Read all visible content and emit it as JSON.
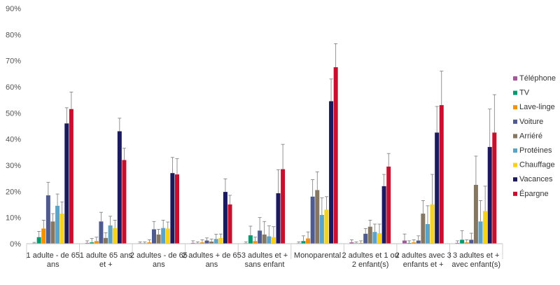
{
  "chart_data": {
    "type": "bar",
    "ylim": [
      0,
      90
    ],
    "y_tick_values": [
      0,
      10,
      20,
      30,
      40,
      50,
      60,
      70,
      80,
      90
    ],
    "y_tick_suffix": "%",
    "grid": false,
    "legend_position": "right",
    "error_bars": true,
    "categories": [
      [
        "1 adulte - de 65",
        "ans"
      ],
      [
        "1 adulte 65 ans",
        "et +"
      ],
      [
        "2 adultes - de 65",
        "ans"
      ],
      [
        "2 adultes + de 65",
        "ans"
      ],
      [
        "3 adultes et +",
        "sans enfant"
      ],
      [
        "Monoparental"
      ],
      [
        "2 adultes et 1 ou",
        "2 enfant(s)"
      ],
      [
        "2 adultes avec 3",
        "enfants et +"
      ],
      [
        "3 adultes et +",
        "avec enfant(s)"
      ]
    ],
    "series": [
      {
        "name": "Téléphone",
        "color": "#a5579a",
        "values": [
          0.2,
          0.3,
          0.2,
          0.3,
          0.2,
          0.2,
          0.5,
          1.2,
          0.3
        ],
        "err": [
          0.3,
          0.8,
          0.5,
          0.8,
          0.5,
          0.5,
          1.0,
          2.5,
          0.8
        ]
      },
      {
        "name": "TV",
        "color": "#009a6e",
        "values": [
          2.5,
          0.5,
          0.2,
          0.2,
          3.2,
          1.0,
          0.2,
          0.3,
          1.5
        ],
        "err": [
          2.2,
          1.5,
          0.5,
          0.5,
          3.5,
          2.0,
          0.5,
          0.8,
          3.5
        ]
      },
      {
        "name": "Lave-linge",
        "color": "#f39200",
        "values": [
          5.8,
          1.0,
          0.5,
          0.5,
          1.0,
          2.0,
          0.3,
          0.5,
          0.5
        ],
        "err": [
          3.2,
          1.5,
          1.0,
          1.0,
          1.5,
          2.5,
          0.8,
          1.0,
          1.0
        ]
      },
      {
        "name": "Voiture",
        "color": "#4f5b8f",
        "values": [
          18.5,
          8.5,
          5.5,
          1.2,
          5.0,
          18.0,
          3.8,
          1.2,
          1.5
        ],
        "err": [
          5.0,
          3.5,
          3.0,
          1.0,
          5.0,
          6.5,
          2.0,
          1.8,
          2.5
        ]
      },
      {
        "name": "Arriéré",
        "color": "#857762",
        "values": [
          8.5,
          2.2,
          3.5,
          0.8,
          3.5,
          20.5,
          6.5,
          11.5,
          22.5
        ],
        "err": [
          3.0,
          2.0,
          2.0,
          1.0,
          5.0,
          7.0,
          2.5,
          5.0,
          11.0
        ]
      },
      {
        "name": "Protéines",
        "color": "#5ba3c8",
        "values": [
          14.5,
          7.0,
          6.0,
          1.8,
          2.8,
          11.0,
          4.5,
          7.5,
          8.5
        ],
        "err": [
          4.5,
          3.5,
          3.0,
          1.8,
          4.0,
          6.5,
          3.0,
          7.0,
          8.0
        ]
      },
      {
        "name": "Chauffage",
        "color": "#f6d21b",
        "values": [
          11.5,
          6.0,
          5.8,
          2.2,
          2.5,
          13.0,
          4.0,
          15.0,
          12.5
        ],
        "err": [
          4.5,
          3.0,
          2.5,
          1.5,
          4.0,
          5.0,
          3.5,
          11.5,
          9.5
        ]
      },
      {
        "name": "Vacances",
        "color": "#1b1a5e",
        "values": [
          46.0,
          43.0,
          27.0,
          19.8,
          19.3,
          54.5,
          22.0,
          42.5,
          37.0
        ],
        "err": [
          6.0,
          5.0,
          6.0,
          5.0,
          9.0,
          8.5,
          4.5,
          10.0,
          14.5
        ]
      },
      {
        "name": "Épargne",
        "color": "#c8102e",
        "values": [
          51.5,
          32.0,
          26.5,
          15.0,
          28.5,
          67.5,
          29.5,
          53.0,
          42.5
        ],
        "err": [
          6.5,
          4.5,
          6.0,
          3.5,
          9.5,
          9.0,
          5.0,
          13.0,
          14.5
        ]
      }
    ]
  }
}
